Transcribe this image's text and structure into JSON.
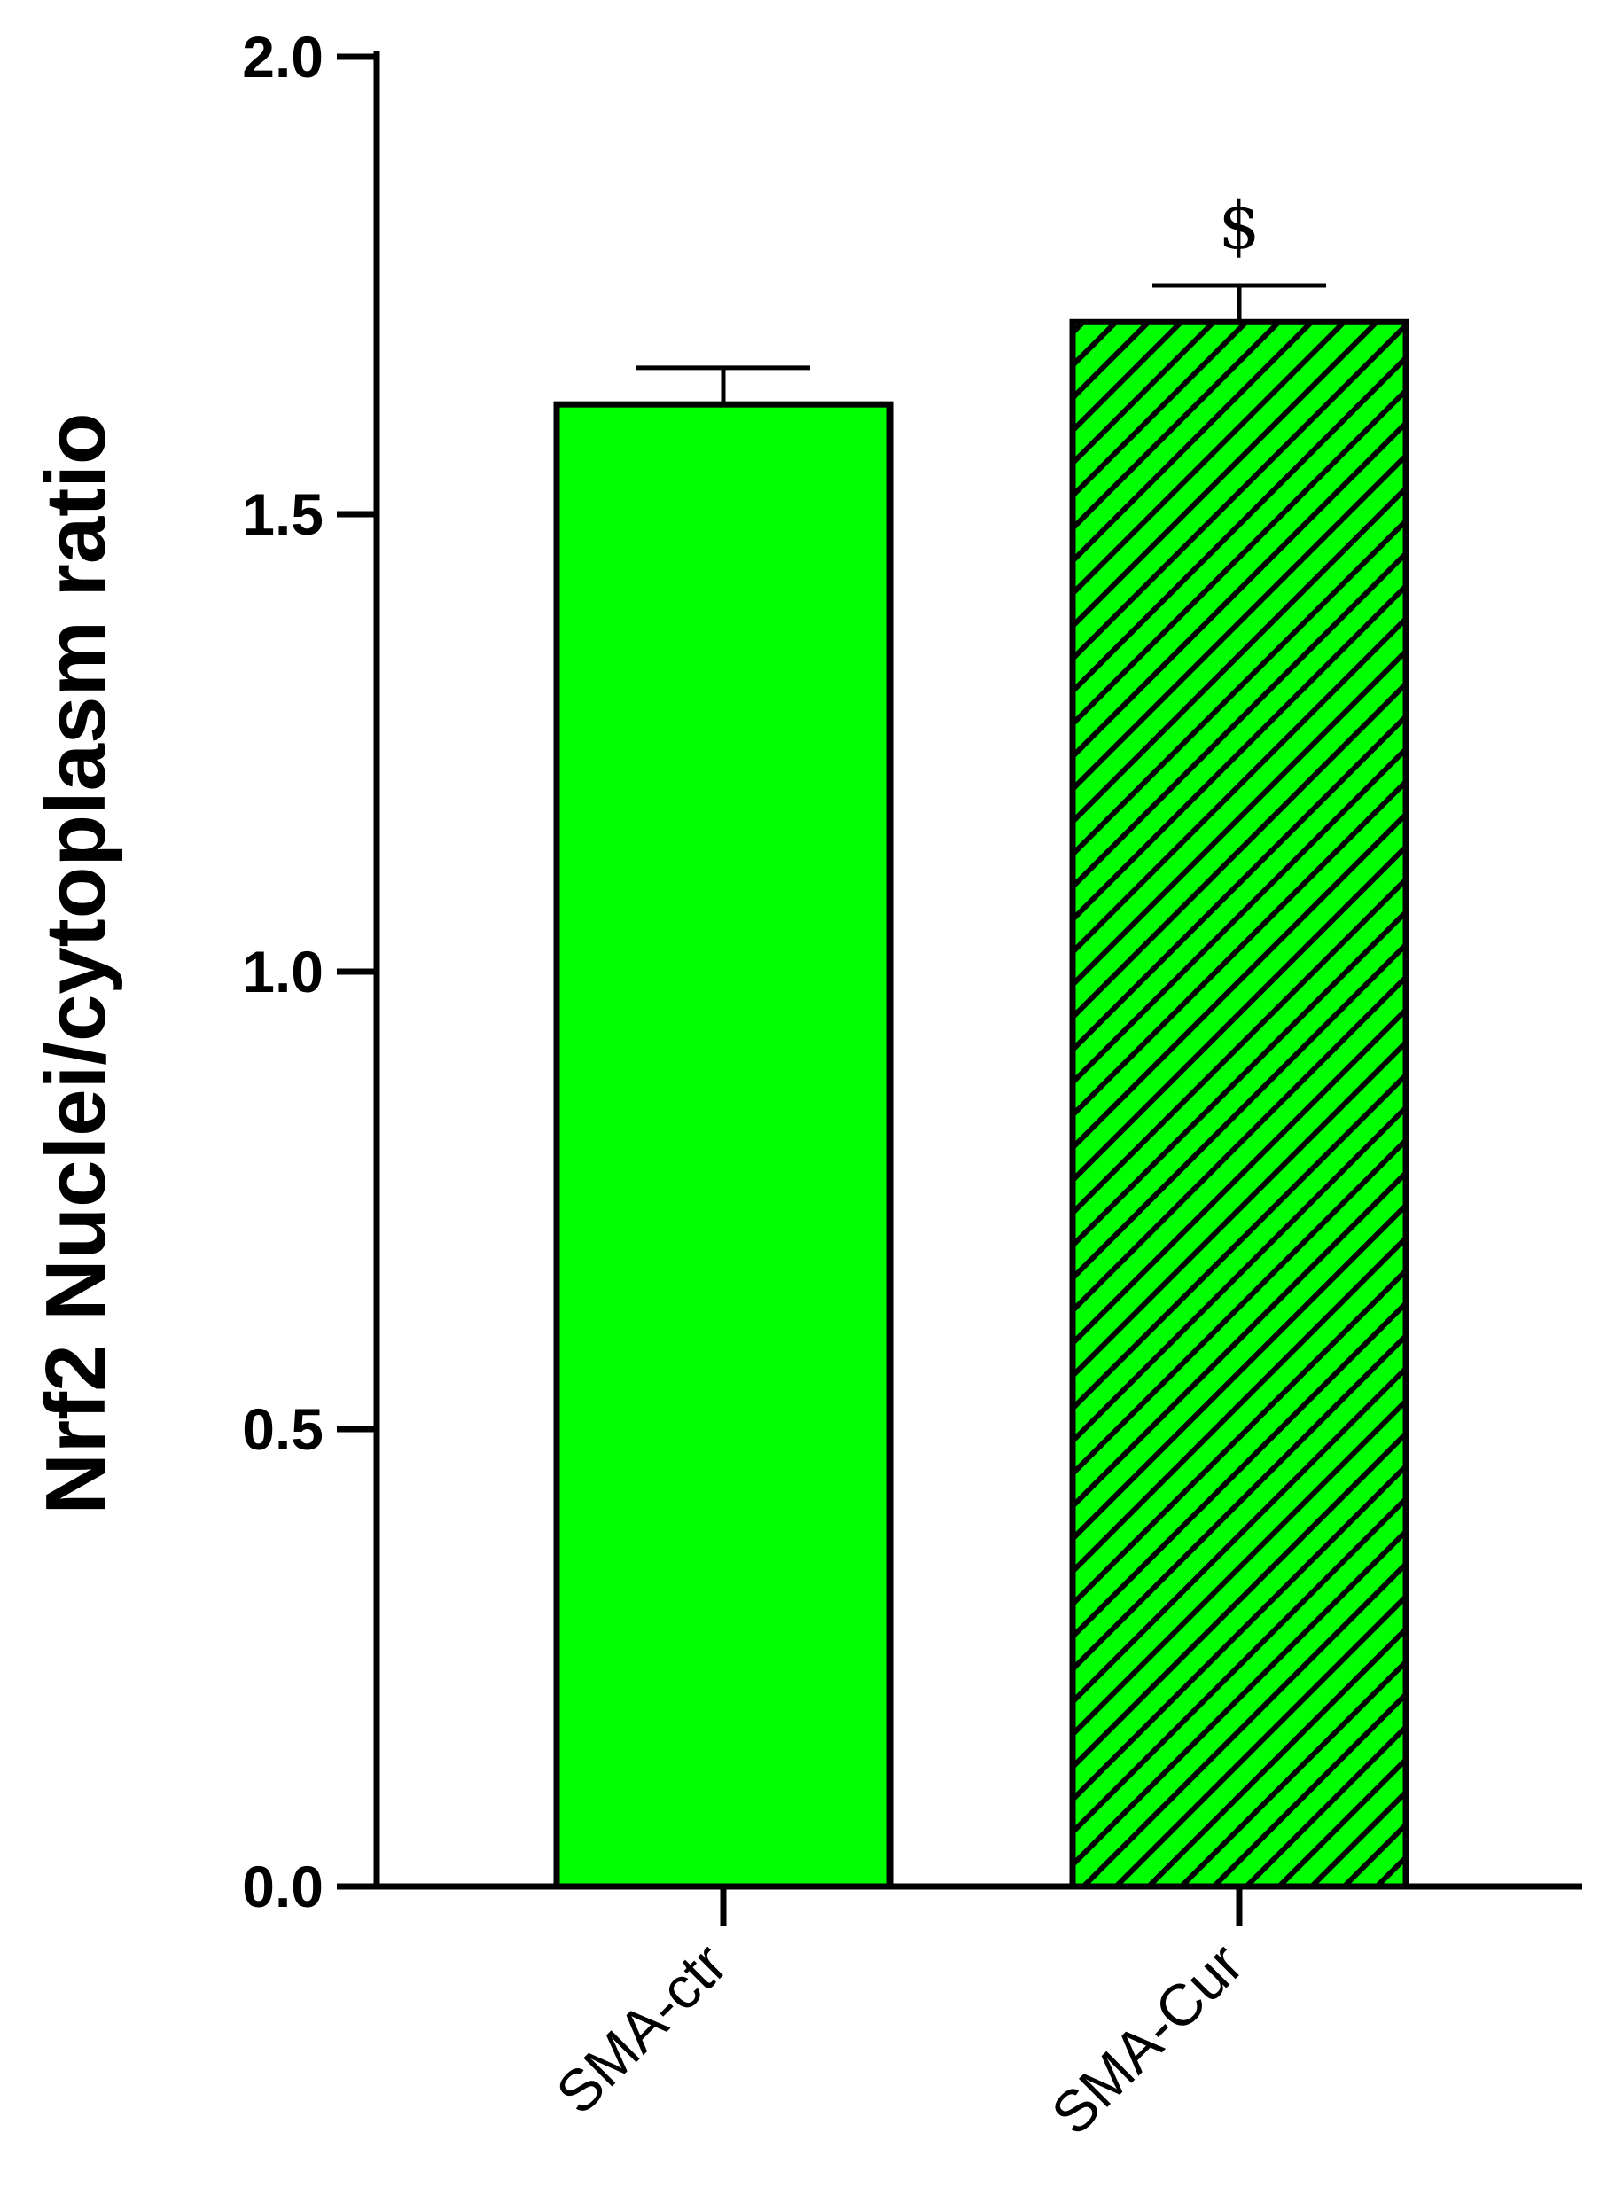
{
  "chart_data": {
    "type": "bar",
    "categories": [
      "SMA-ctr",
      "SMA-Cur"
    ],
    "values": [
      1.62,
      1.71
    ],
    "error_bars": [
      0.04,
      0.04
    ],
    "annotations": [
      "",
      "$"
    ],
    "patterns": [
      "solid",
      "hatched"
    ],
    "bar_color": "#00ff00",
    "hatch_color": "#000000",
    "title": "",
    "xlabel": "",
    "ylabel": "Nrf2 Nuclei/cytoplasm ratio",
    "ylim": [
      0,
      2.0
    ],
    "yticks": [
      "0.0",
      "0.5",
      "1.0",
      "1.5",
      "2.0"
    ],
    "grid": false,
    "legend": "none"
  }
}
